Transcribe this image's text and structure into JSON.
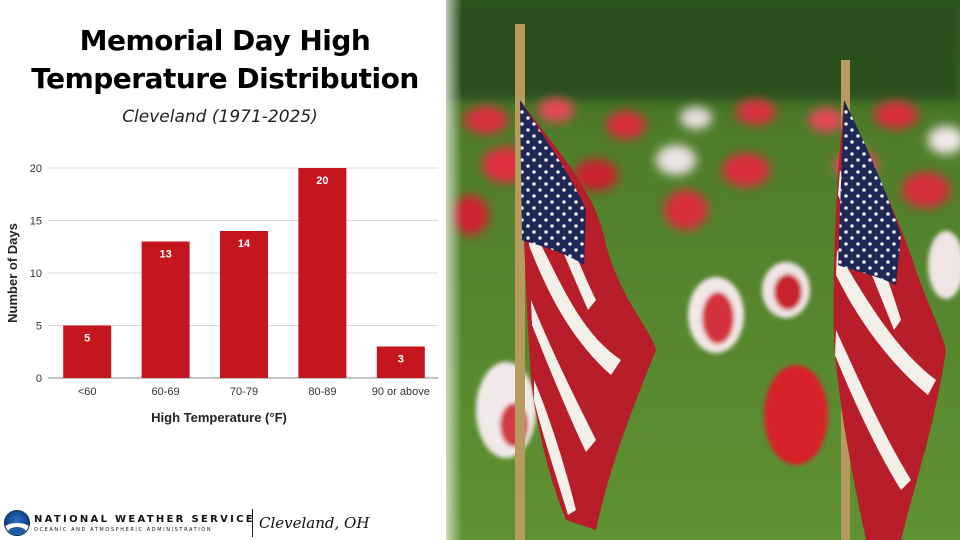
{
  "title_line1": "Memorial Day High",
  "title_line2": "Temperature Distribution",
  "subtitle": "Cleveland (1971-2025)",
  "footer": {
    "org_name": "NATIONAL WEATHER SERVICE",
    "org_sub": "OCEANIC AND ATMOSPHERIC ADMINISTRATION",
    "office": "Cleveland, OH"
  },
  "colors": {
    "bar": "#c4161c",
    "grid": "#d9d9d9"
  },
  "icons": [
    "noaa-logo-icon"
  ],
  "chart_data": {
    "type": "bar",
    "categories": [
      "<60",
      "60-69",
      "70-79",
      "80-89",
      "90 or above"
    ],
    "values": [
      5,
      13,
      14,
      20,
      3
    ],
    "xlabel": "High Temperature (°F)",
    "ylabel": "Number of Days",
    "ylim": [
      0,
      20
    ],
    "yticks": [
      0,
      5,
      10,
      15,
      20
    ],
    "grid": true,
    "data_labels": true
  }
}
